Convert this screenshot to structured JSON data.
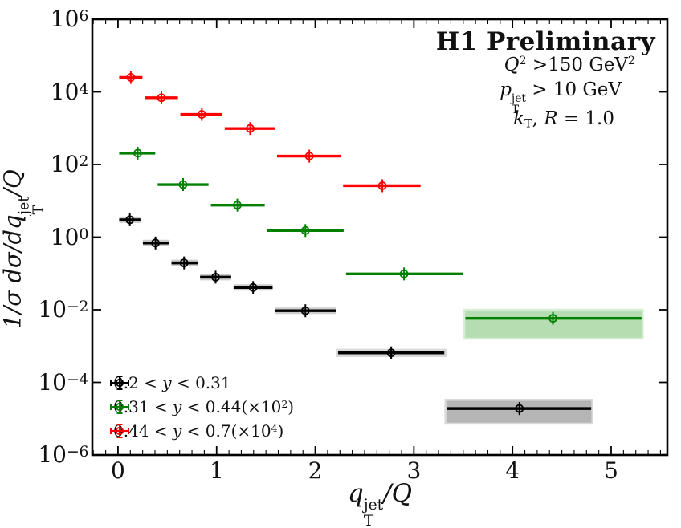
{
  "figure": {
    "background": "#ffffff"
  },
  "annotations": {
    "title": "H1 Preliminary",
    "q2_line": {
      "var": "Q",
      "sup1": "2",
      "mid": " >150 GeV",
      "sup2": "2"
    },
    "pt_line": {
      "var": "p",
      "sup": "jet",
      "sub": "T",
      "rest": " > 10 GeV"
    },
    "kt_line": {
      "var": "k",
      "sub": "T",
      "mid": ", ",
      "var2": "R",
      "rest": " = 1.0"
    }
  },
  "axis_labels": {
    "x": {
      "var": "q",
      "sup": "jet",
      "sub": "T",
      "post": "/Q"
    },
    "y": {
      "pre": "1/σ dσ/d",
      "var": "q",
      "sup": "jet",
      "sub": "T",
      "post": "/Q"
    }
  },
  "legend": {
    "items": [
      {
        "pre": "0.2 < ",
        "var": "y",
        "post": " < 0.31",
        "sup": "",
        "close": ""
      },
      {
        "pre": "0.31 < ",
        "var": "y",
        "post": " < 0.44(×10",
        "sup": "2",
        "close": ")"
      },
      {
        "pre": "0.44 < ",
        "var": "y",
        "post": " < 0.7(×10",
        "sup": "4",
        "close": ")"
      }
    ]
  },
  "chart_data": {
    "type": "scatter",
    "title": "H1 Preliminary",
    "subtitle_lines": [
      "Q² >150 GeV²",
      "p_T^jet > 10 GeV",
      "k_T, R = 1.0"
    ],
    "x_axis": {
      "label": "q_T^jet/Q",
      "scale": "linear",
      "lim": [
        -0.26,
        5.57
      ],
      "minor_step": 0.125,
      "ticks": [
        {
          "v": 0,
          "label": "0"
        },
        {
          "v": 1,
          "label": "1"
        },
        {
          "v": 2,
          "label": "2"
        },
        {
          "v": 3,
          "label": "3"
        },
        {
          "v": 4,
          "label": "4"
        },
        {
          "v": 5,
          "label": "5"
        }
      ]
    },
    "y_axis": {
      "label": "1/σ dσ/dq_T^jet/Q",
      "scale": "log",
      "lim": [
        1e-06,
        1000000.0
      ],
      "ticks": [
        {
          "exp": 6,
          "base": "10",
          "sup": "6"
        },
        {
          "exp": 4,
          "base": "10",
          "sup": "4"
        },
        {
          "exp": 2,
          "base": "10",
          "sup": "2"
        },
        {
          "exp": 0,
          "base": "10",
          "sup": "0"
        },
        {
          "exp": -2,
          "base": "10",
          "sup": "−2"
        },
        {
          "exp": -4,
          "base": "10",
          "sup": "−4"
        },
        {
          "exp": -6,
          "base": "10",
          "sup": "−6"
        }
      ]
    },
    "legend_position": "lower-left",
    "series": [
      {
        "id": "y-0.2-0.31",
        "label": "0.2 < y < 0.31",
        "multiplier": 1,
        "color": "#000000",
        "halo_color": "#cccccc",
        "band_fill": "#b5b5b5",
        "band_edge": "#d9d9d9",
        "points": [
          {
            "x": 0.12,
            "xlo": 0.0,
            "xhi": 0.24,
            "y": 3.0,
            "halo": true
          },
          {
            "x": 0.38,
            "xlo": 0.24,
            "xhi": 0.53,
            "y": 0.69,
            "halo": true
          },
          {
            "x": 0.67,
            "xlo": 0.53,
            "xhi": 0.82,
            "y": 0.195,
            "halo": true
          },
          {
            "x": 0.99,
            "xlo": 0.82,
            "xhi": 1.16,
            "y": 0.079,
            "halo": true
          },
          {
            "x": 1.37,
            "xlo": 1.16,
            "xhi": 1.58,
            "y": 0.041,
            "halo": true
          },
          {
            "x": 1.9,
            "xlo": 1.58,
            "xhi": 2.22,
            "y": 0.0094,
            "halo": true
          },
          {
            "x": 2.77,
            "xlo": 2.22,
            "xhi": 3.32,
            "y": 0.00065,
            "halo": true,
            "band": {
              "y_hi": 0.00079,
              "y_lo": 0.00053
            }
          },
          {
            "x": 4.07,
            "xlo": 3.32,
            "xhi": 4.81,
            "y": 1.9e-05,
            "band": {
              "y_hi": 3.3e-05,
              "y_lo": 7.3e-06
            }
          }
        ]
      },
      {
        "id": "y-0.31-0.44",
        "label": "0.31 < y < 0.44(×10²)",
        "multiplier": 100,
        "color": "#008000",
        "halo_color": "#cde8ca",
        "band_fill": "#b6dcb1",
        "band_edge": "#d7ecd4",
        "points": [
          {
            "x": 0.2,
            "xlo": 0.0,
            "xhi": 0.39,
            "y": 205
          },
          {
            "x": 0.66,
            "xlo": 0.39,
            "xhi": 0.93,
            "y": 28
          },
          {
            "x": 1.21,
            "xlo": 0.93,
            "xhi": 1.5,
            "y": 7.6
          },
          {
            "x": 1.9,
            "xlo": 1.5,
            "xhi": 2.3,
            "y": 1.52
          },
          {
            "x": 2.9,
            "xlo": 2.3,
            "xhi": 3.51,
            "y": 0.097
          },
          {
            "x": 4.41,
            "xlo": 3.51,
            "xhi": 5.32,
            "y": 0.0058,
            "band": {
              "y_hi": 0.01,
              "y_lo": 0.0016
            }
          }
        ]
      },
      {
        "id": "y-0.44-0.7",
        "label": "0.44 < y < 0.7(×10⁴)",
        "multiplier": 10000,
        "color": "#ff0000",
        "halo_color": "#ffc9c9",
        "band_fill": "#f7b6b6",
        "band_edge": "#fbdddd",
        "points": [
          {
            "x": 0.13,
            "xlo": 0.0,
            "xhi": 0.26,
            "y": 25000
          },
          {
            "x": 0.44,
            "xlo": 0.26,
            "xhi": 0.62,
            "y": 6900
          },
          {
            "x": 0.85,
            "xlo": 0.62,
            "xhi": 1.07,
            "y": 2400
          },
          {
            "x": 1.34,
            "xlo": 1.07,
            "xhi": 1.6,
            "y": 980
          },
          {
            "x": 1.94,
            "xlo": 1.6,
            "xhi": 2.27,
            "y": 170
          },
          {
            "x": 2.68,
            "xlo": 2.27,
            "xhi": 3.08,
            "y": 26
          }
        ]
      }
    ]
  }
}
